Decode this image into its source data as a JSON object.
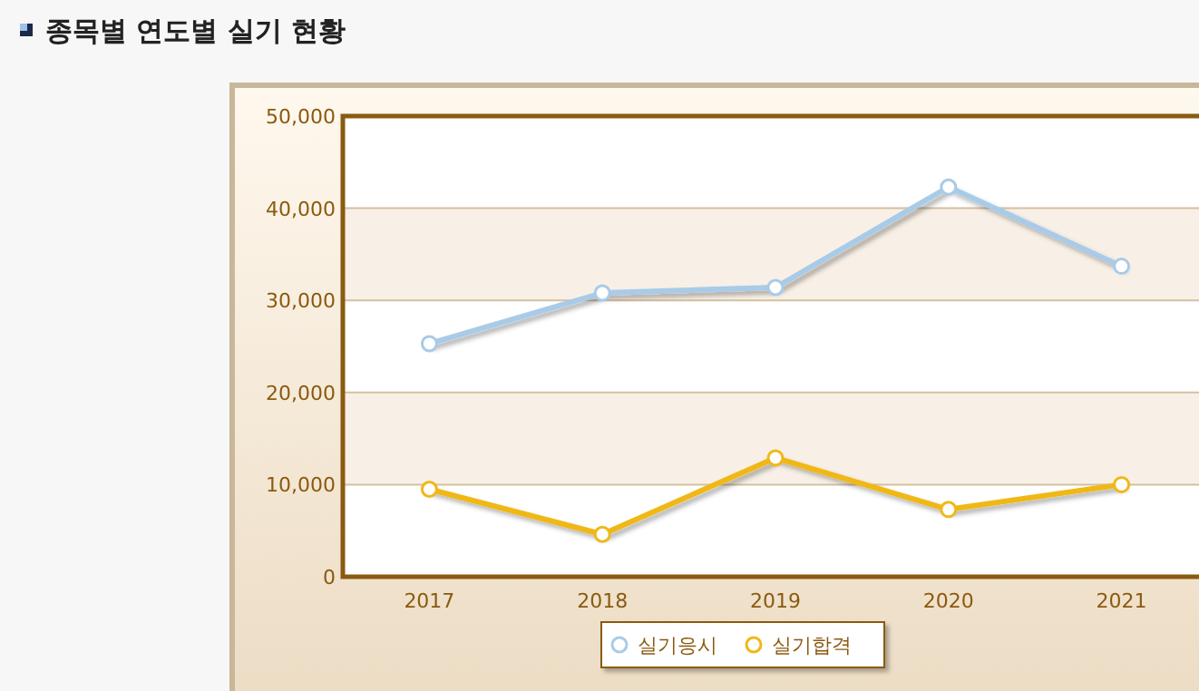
{
  "chart_data": {
    "type": "line",
    "title": "종목별 연도별 실기 현황",
    "categories": [
      "2017",
      "2018",
      "2019",
      "2020",
      "2021"
    ],
    "series": [
      {
        "name": "실기응시",
        "color": "#a8cbe8",
        "values": [
          25300,
          30800,
          31400,
          42300,
          33700
        ]
      },
      {
        "name": "실기합격",
        "color": "#f0b818",
        "values": [
          9500,
          4600,
          12900,
          7300,
          10000
        ]
      }
    ],
    "ylim": [
      0,
      50000
    ],
    "yticks": [
      {
        "value": 0,
        "label": "0"
      },
      {
        "value": 10000,
        "label": "10,000"
      },
      {
        "value": 20000,
        "label": "20,000"
      },
      {
        "value": 30000,
        "label": "30,000"
      },
      {
        "value": 40000,
        "label": "40,000"
      },
      {
        "value": 50000,
        "label": "50,000"
      }
    ],
    "grid": "y",
    "legend": "bottom",
    "marker": "circle",
    "line_style": "solid"
  }
}
